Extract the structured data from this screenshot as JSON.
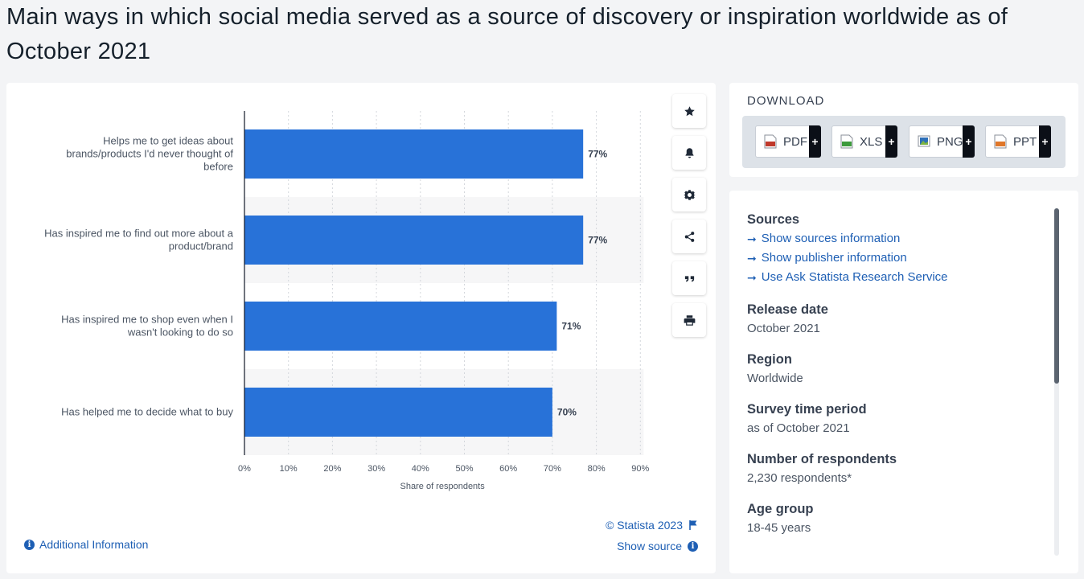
{
  "page": {
    "title": "Main ways in which social media served as a source of discovery or inspiration worldwide as of October 2021"
  },
  "chart_data": {
    "type": "bar",
    "orientation": "horizontal",
    "title": "",
    "categories": [
      "Helps me to get ideas about brands/products I'd never thought of before",
      "Has inspired me to find out more about a product/brand",
      "Has inspired me to shop even when I wasn't looking to do so",
      "Has helped me to decide what to buy"
    ],
    "category_lines": [
      [
        "Helps me to get ideas about",
        "brands/products I'd never thought of",
        "before"
      ],
      [
        "Has inspired me to find out more about a",
        "product/brand"
      ],
      [
        "Has inspired me to shop even when I",
        "wasn't looking to do so"
      ],
      [
        "Has helped me to decide what to buy"
      ]
    ],
    "values": [
      77,
      77,
      71,
      70
    ],
    "value_labels": [
      "77%",
      "77%",
      "71%",
      "70%"
    ],
    "xlabel": "Share of respondents",
    "ylabel": "",
    "xlim": [
      0,
      90
    ],
    "ticks": [
      0,
      10,
      20,
      30,
      40,
      50,
      60,
      70,
      80,
      90
    ],
    "tick_labels": [
      "0%",
      "10%",
      "20%",
      "30%",
      "40%",
      "50%",
      "60%",
      "70%",
      "80%",
      "90%"
    ],
    "bar_color": "#2872d8",
    "grid": true,
    "legend": "none"
  },
  "chart_footer": {
    "additional_info": "Additional Information",
    "copyright": "© Statista 2023",
    "show_source": "Show source"
  },
  "tools": {
    "items": [
      {
        "name": "star-icon",
        "label": "favorite"
      },
      {
        "name": "bell-icon",
        "label": "notification"
      },
      {
        "name": "gear-icon",
        "label": "settings"
      },
      {
        "name": "share-icon",
        "label": "share"
      },
      {
        "name": "quote-icon",
        "label": "cite"
      },
      {
        "name": "print-icon",
        "label": "print"
      }
    ]
  },
  "download": {
    "title": "DOWNLOAD",
    "buttons": [
      {
        "label": "PDF",
        "icon": "pdf-file-icon",
        "color": "#c0392b"
      },
      {
        "label": "XLS",
        "icon": "xls-file-icon",
        "color": "#3c9a3c"
      },
      {
        "label": "PNG",
        "icon": "png-file-icon",
        "color": "#2d6fb8"
      },
      {
        "label": "PPT",
        "icon": "ppt-file-icon",
        "color": "#e0772a"
      }
    ],
    "plus": "+"
  },
  "info": {
    "sources_head": "Sources",
    "links": [
      "Show sources information",
      "Show publisher information",
      "Use Ask Statista Research Service"
    ],
    "fields": [
      {
        "head": "Release date",
        "value": "October 2021"
      },
      {
        "head": "Region",
        "value": "Worldwide"
      },
      {
        "head": "Survey time period",
        "value": "as of October 2021"
      },
      {
        "head": "Number of respondents",
        "value": "2,230 respondents*"
      },
      {
        "head": "Age group",
        "value": "18-45 years"
      }
    ]
  },
  "colors": {
    "accent": "#1e5fb4",
    "bar": "#2872d8"
  }
}
